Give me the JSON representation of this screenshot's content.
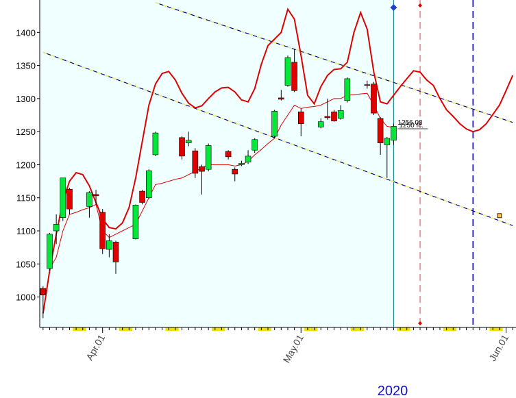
{
  "chart_data": {
    "type": "candlestick",
    "x_label": "2020",
    "categories": [
      null,
      null,
      null,
      null,
      null,
      null,
      null,
      null,
      null,
      "Apr.01",
      null,
      null,
      null,
      null,
      null,
      null,
      null,
      null,
      null,
      null,
      null,
      null,
      null,
      null,
      null,
      null,
      null,
      null,
      null,
      null,
      null,
      null,
      null,
      null,
      null,
      null,
      null,
      null,
      null,
      "May.01",
      null,
      null,
      null,
      null,
      null,
      null,
      null,
      null,
      null,
      null,
      null,
      null,
      null,
      null,
      null,
      null,
      null,
      null,
      null,
      null,
      null,
      null,
      null,
      null,
      null,
      null,
      null,
      null,
      null,
      null,
      "Jun.01",
      null
    ],
    "ylim": [
      954,
      1449
    ],
    "yticks": [
      1000,
      1050,
      1100,
      1150,
      1200,
      1250,
      1300,
      1350,
      1400
    ],
    "up_color": "#00e838",
    "down_color": "#e00000",
    "ohlc": {
      "open": [
        1013,
        1043,
        1100,
        1120,
        1163,
        null,
        null,
        1137,
        1155,
        1128,
        1072,
        1083,
        null,
        null,
        1088,
        1160,
        1150,
        1215,
        null,
        null,
        null,
        1241,
        1233,
        1221,
        1197,
        1193,
        null,
        null,
        1220,
        1193,
        1200,
        1204,
        1222,
        null,
        null,
        1243,
        1301,
        1320,
        1355,
        1280,
        null,
        null,
        1257,
        1273,
        1280,
        1270,
        1297,
        null,
        null,
        1321,
        1322,
        1270,
        1230,
        1237,
        null,
        null,
        null,
        null,
        null,
        null,
        null,
        null,
        null,
        null,
        null,
        null,
        null,
        null,
        null,
        null,
        null,
        null
      ],
      "high": [
        1016,
        1097,
        1125,
        1180,
        1165,
        null,
        null,
        1160,
        1162,
        1133,
        1095,
        1085,
        null,
        null,
        1140,
        1162,
        1193,
        1250,
        null,
        null,
        null,
        1243,
        1250,
        1225,
        1200,
        1232,
        null,
        null,
        1222,
        1196,
        1206,
        1222,
        1240,
        null,
        null,
        1283,
        1313,
        1365,
        1375,
        1285,
        null,
        null,
        1270,
        1300,
        1283,
        1290,
        1332,
        null,
        null,
        1327,
        1325,
        1272,
        1242,
        1262,
        null,
        null,
        null,
        null,
        null,
        null,
        null,
        null,
        null,
        null,
        null,
        null,
        null,
        null,
        null,
        null,
        null,
        null
      ],
      "low": [
        968,
        1040,
        1080,
        1115,
        1125,
        null,
        null,
        1120,
        1140,
        1065,
        1060,
        1035,
        null,
        null,
        1087,
        1140,
        1148,
        1213,
        null,
        null,
        null,
        1208,
        1228,
        1180,
        1155,
        1190,
        null,
        null,
        1208,
        1175,
        1198,
        1201,
        1218,
        null,
        null,
        1240,
        1297,
        1318,
        1310,
        1243,
        null,
        null,
        1255,
        1268,
        1265,
        1268,
        1294,
        null,
        null,
        1315,
        1275,
        1215,
        1180,
        1230,
        null,
        null,
        null,
        null,
        null,
        null,
        null,
        null,
        null,
        null,
        null,
        null,
        null,
        null,
        null,
        null,
        null,
        null
      ],
      "close": [
        1003,
        1095,
        1110,
        1180,
        1133,
        null,
        null,
        1158,
        1153,
        1073,
        1085,
        1053,
        null,
        null,
        1139,
        1143,
        1191,
        1248,
        null,
        null,
        null,
        1213,
        1237,
        1187,
        1190,
        1229,
        null,
        null,
        1212,
        1186,
        1202,
        1213,
        1238,
        null,
        null,
        1281,
        1299,
        1362,
        1312,
        1262,
        null,
        null,
        1265,
        1271,
        1266,
        1282,
        1330,
        null,
        null,
        1320,
        1278,
        1233,
        1240,
        1258,
        null,
        null,
        null,
        null,
        null,
        null,
        null,
        null,
        null,
        null,
        null,
        null,
        null,
        null,
        null,
        null,
        null,
        null
      ]
    },
    "lines": [
      {
        "color": "#e00000",
        "width": 1,
        "values": [
          null,
          1043,
          1060,
          1100,
          1125,
          1128,
          1132,
          1135,
          1140,
          1100,
          1090,
          1095,
          1100,
          1105,
          1110,
          1130,
          1150,
          1170,
          1172,
          1175,
          1178,
          1180,
          1185,
          1190,
          1195,
          1200,
          1200,
          1200,
          1200,
          1198,
          1200,
          1205,
          1215,
          1223,
          1232,
          1240,
          1260,
          1275,
          1290,
          1285,
          1287,
          1288,
          1290,
          1295,
          1300,
          1300,
          1305,
          1306,
          1307,
          1308,
          1290,
          1270,
          1258,
          1256,
          null,
          null,
          null,
          null,
          null,
          null,
          null,
          null,
          null,
          null,
          null,
          null,
          null,
          null,
          null,
          null,
          null,
          null
        ]
      },
      {
        "color": "#e00000",
        "width": 2,
        "values": [
          975,
          1040,
          1095,
          1145,
          1175,
          1188,
          1185,
          1168,
          1143,
          1118,
          1105,
          1103,
          1112,
          1135,
          1180,
          1235,
          1290,
          1322,
          1338,
          1341,
          1328,
          1308,
          1293,
          1286,
          1289,
          1300,
          1310,
          1316,
          1317,
          1310,
          1298,
          1295,
          1315,
          1352,
          1380,
          1390,
          1400,
          1435,
          1420,
          1365,
          1305,
          1292,
          1318,
          1335,
          1344,
          1345,
          1355,
          1400,
          1430,
          1405,
          1340,
          1295,
          1292,
          1305,
          1318,
          1330,
          1342,
          1340,
          1328,
          1320,
          1300,
          1283,
          1273,
          1262,
          1254,
          1250,
          1253,
          1262,
          1276,
          1290,
          1312,
          1335
        ]
      }
    ],
    "trend_lines": [
      {
        "from": [
          17,
          1445
        ],
        "to": [
          71,
          1264
        ]
      },
      {
        "from": [
          0,
          1370
        ],
        "to": [
          71,
          1108
        ]
      }
    ],
    "vlines": [
      {
        "category": 53,
        "color": "#008080",
        "dash": false
      },
      {
        "category": 57,
        "color": "#f08080",
        "dash": true
      },
      {
        "category": 65,
        "color": "#0000c0",
        "dash": true
      }
    ],
    "marker": {
      "category": 69,
      "value": 1123
    },
    "annotations": [
      "1256.08",
      "1250 fc."
    ]
  }
}
